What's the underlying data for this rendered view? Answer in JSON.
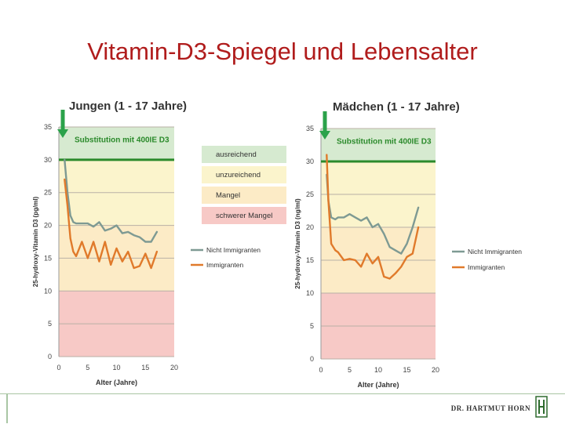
{
  "slide": {
    "title": "Vitamin-D3-Spiegel und Lebensalter"
  },
  "footer": {
    "brand": "DR. HARTMUT HORN"
  },
  "colors": {
    "title": "#b01c1c",
    "zone_ausreichend": "#d6ead0",
    "zone_unzureichend": "#fbf4cc",
    "zone_mangel": "#fcebc6",
    "zone_schwerer_mangel": "#f7c9c6",
    "threshold_line": "#2b8a2b",
    "arrow": "#2ba24a",
    "nicht_immigranten": "#7e9a93",
    "immigranten": "#e07a2b"
  },
  "chart_data": [
    {
      "type": "line",
      "title": "Jungen (1 - 17 Jahre)",
      "xlabel": "Alter (Jahre)",
      "ylabel": "25-hydroxy-Vitamin D3 (pg/ml)",
      "xlim": [
        0,
        20
      ],
      "ylim": [
        0,
        35
      ],
      "xticks": [
        0,
        5,
        10,
        15,
        20
      ],
      "yticks": [
        0,
        5,
        10,
        15,
        20,
        25,
        30,
        35
      ],
      "threshold": 30,
      "annotation": "Substitution mit 400IE D3",
      "legend_zones": [
        "ausreichend",
        "unzureichend",
        "Mangel",
        "schwerer Mangel"
      ],
      "series": [
        {
          "name": "Nicht Immigranten",
          "color": "#7e9a93",
          "x": [
            1,
            1.5,
            2,
            2.5,
            3,
            4,
            5,
            6,
            7,
            8,
            9,
            10,
            11,
            12,
            13,
            14,
            15,
            16,
            17
          ],
          "y": [
            30,
            25,
            21.5,
            20.5,
            20.3,
            20.3,
            20.3,
            19.8,
            20.5,
            19.2,
            19.5,
            20,
            18.8,
            19,
            18.5,
            18.2,
            17.5,
            17.5,
            19
          ]
        },
        {
          "name": "Immigranten",
          "color": "#e07a2b",
          "x": [
            1,
            1.5,
            2,
            2.5,
            3,
            4,
            5,
            6,
            7,
            8,
            9,
            10,
            11,
            12,
            13,
            14,
            15,
            16,
            17
          ],
          "y": [
            27,
            23,
            18,
            16,
            15.3,
            17.5,
            15,
            17.5,
            14.5,
            17.5,
            14,
            16.5,
            14.5,
            16,
            13.5,
            13.8,
            15.7,
            13.5,
            16
          ]
        }
      ]
    },
    {
      "type": "line",
      "title": "Mädchen (1 - 17 Jahre)",
      "xlabel": "Alter (Jahre)",
      "ylabel": "25-hydroxy-Vitamin D3 (ng/ml)",
      "xlim": [
        0,
        20
      ],
      "ylim": [
        0,
        35
      ],
      "xticks": [
        0,
        5,
        10,
        15,
        20
      ],
      "yticks": [
        0,
        5,
        10,
        15,
        20,
        25,
        30,
        35
      ],
      "threshold": 30,
      "annotation": "Substitution mit 400IE D3",
      "series": [
        {
          "name": "Nicht Immigranten",
          "color": "#7e9a93",
          "x": [
            1,
            1.3,
            1.8,
            2.5,
            3,
            4,
            5,
            6,
            7,
            8,
            9,
            10,
            11,
            12,
            13,
            14,
            15,
            16,
            17
          ],
          "y": [
            28,
            24,
            21.5,
            21.2,
            21.5,
            21.5,
            22,
            21.5,
            21,
            21.5,
            20,
            20.5,
            19,
            17,
            16.5,
            16,
            17.5,
            20,
            23
          ]
        },
        {
          "name": "Immigranten",
          "color": "#e07a2b",
          "x": [
            1,
            1.3,
            1.8,
            2.5,
            3,
            4,
            5,
            6,
            7,
            8,
            9,
            10,
            11,
            12,
            13,
            14,
            15,
            16,
            17
          ],
          "y": [
            31,
            24,
            17.5,
            16.5,
            16.2,
            15,
            15.2,
            15,
            14,
            16,
            14.5,
            15.5,
            12.5,
            12.2,
            13,
            14,
            15.5,
            16,
            20
          ]
        }
      ]
    }
  ]
}
